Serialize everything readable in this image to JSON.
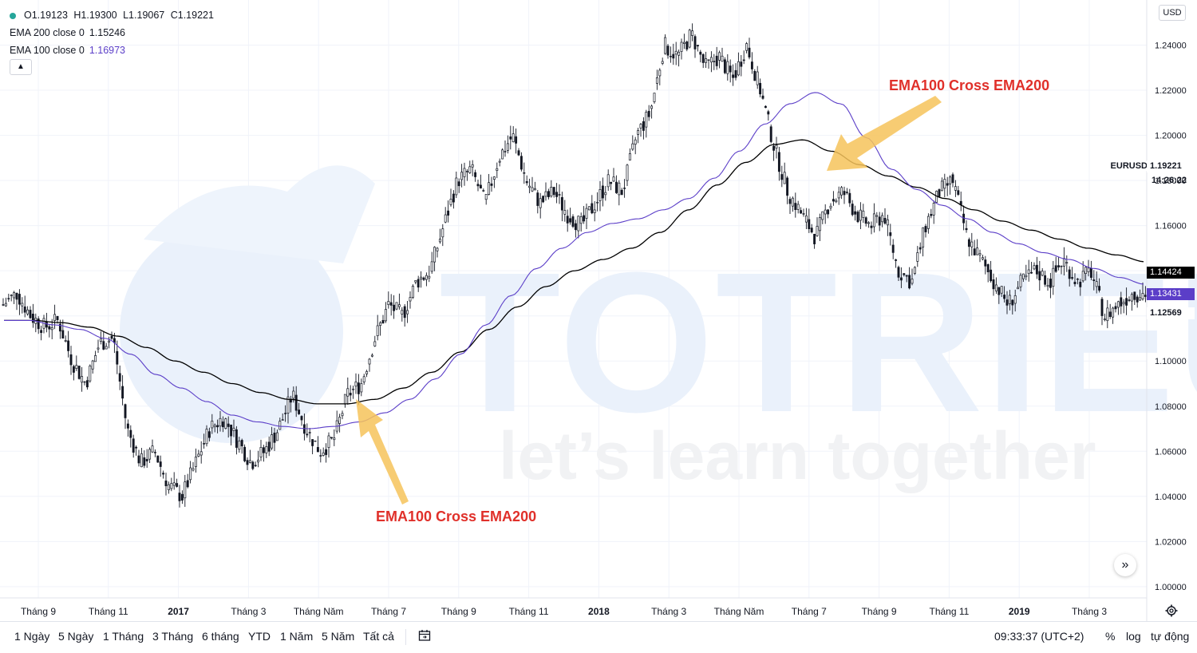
{
  "legend": {
    "ohlc": {
      "open": "O1.19123",
      "high": "H1.19300",
      "low": "L1.19067",
      "close": "C1.19221"
    },
    "ema200": {
      "label": "EMA 200 close 0",
      "value": "1.15246"
    },
    "ema100": {
      "label": "EMA 100 close 0",
      "value": "1.16973"
    }
  },
  "currency": "USD",
  "symbol": "EURUSD",
  "current_price": "1.19221",
  "countdown": "14:26:22",
  "ema200_tag": "1.14424",
  "ema100_tag": "1.13431",
  "other_tag": "1.12569",
  "watermark": {
    "brand": "TOTRIEU",
    "tagline": "let’s learn together"
  },
  "annotations": [
    {
      "text": "EMA100 Cross EMA200"
    },
    {
      "text": "EMA100 Cross EMA200"
    }
  ],
  "toolbar": {
    "timeframes": [
      "1 Ngày",
      "5 Ngày",
      "1 Tháng",
      "3 Tháng",
      "6 tháng",
      "YTD",
      "1 Năm",
      "5 Năm",
      "Tất cả"
    ],
    "clock": "09:33:37 (UTC+2)",
    "percent": "%",
    "log": "log",
    "auto": "tự động"
  },
  "colors": {
    "ema100": "#5b3ec8",
    "ema200": "#000000",
    "candle": "#131722",
    "annotation": "#e0302a",
    "arrow": "#f6c35a",
    "watermark": "#eaf1fb"
  },
  "chart_data": {
    "type": "line",
    "symbol": "EURUSD",
    "ylim": [
      0.995,
      1.26
    ],
    "y_ticks": [
      "1.00000",
      "1.02000",
      "1.04000",
      "1.06000",
      "1.08000",
      "1.10000",
      "1.12000",
      "1.14000",
      "1.16000",
      "1.18000",
      "1.20000",
      "1.22000",
      "1.24000"
    ],
    "y_tick_values": [
      1.0,
      1.02,
      1.04,
      1.06,
      1.08,
      1.1,
      1.12,
      1.14,
      1.16,
      1.18,
      1.2,
      1.22,
      1.24
    ],
    "x_ticks": [
      {
        "label": "Tháng 9",
        "bold": false
      },
      {
        "label": "Tháng 11",
        "bold": false
      },
      {
        "label": "2017",
        "bold": true
      },
      {
        "label": "Tháng 3",
        "bold": false
      },
      {
        "label": "Tháng Năm",
        "bold": false
      },
      {
        "label": "Tháng 7",
        "bold": false
      },
      {
        "label": "Tháng 9",
        "bold": false
      },
      {
        "label": "Tháng 11",
        "bold": false
      },
      {
        "label": "2018",
        "bold": true
      },
      {
        "label": "Tháng 3",
        "bold": false
      },
      {
        "label": "Tháng Năm",
        "bold": false
      },
      {
        "label": "Tháng 7",
        "bold": false
      },
      {
        "label": "Tháng 9",
        "bold": false
      },
      {
        "label": "Tháng 11",
        "bold": false
      },
      {
        "label": "2019",
        "bold": true
      },
      {
        "label": "Tháng 3",
        "bold": false
      }
    ],
    "price_series": [
      1.125,
      1.13,
      1.12,
      1.115,
      1.118,
      1.1,
      1.09,
      1.108,
      1.11,
      1.07,
      1.055,
      1.06,
      1.045,
      1.04,
      1.055,
      1.07,
      1.075,
      1.065,
      1.055,
      1.06,
      1.07,
      1.085,
      1.07,
      1.06,
      1.065,
      1.085,
      1.09,
      1.11,
      1.125,
      1.12,
      1.135,
      1.14,
      1.16,
      1.18,
      1.185,
      1.17,
      1.19,
      1.2,
      1.18,
      1.17,
      1.175,
      1.165,
      1.16,
      1.17,
      1.18,
      1.175,
      1.2,
      1.21,
      1.24,
      1.235,
      1.245,
      1.23,
      1.235,
      1.225,
      1.24,
      1.22,
      1.195,
      1.175,
      1.165,
      1.155,
      1.17,
      1.175,
      1.165,
      1.16,
      1.165,
      1.14,
      1.135,
      1.16,
      1.175,
      1.18,
      1.155,
      1.145,
      1.135,
      1.125,
      1.135,
      1.14,
      1.135,
      1.145,
      1.135,
      1.14,
      1.12,
      1.125,
      1.13,
      1.13
    ],
    "series": [
      {
        "name": "EMA 100 close 0",
        "values": [
          1.118,
          1.118,
          1.116,
          1.114,
          1.11,
          1.103,
          1.094,
          1.088,
          1.082,
          1.076,
          1.073,
          1.071,
          1.07,
          1.071,
          1.073,
          1.077,
          1.083,
          1.092,
          1.103,
          1.116,
          1.129,
          1.141,
          1.15,
          1.157,
          1.161,
          1.163,
          1.167,
          1.172,
          1.181,
          1.193,
          1.205,
          1.214,
          1.219,
          1.214,
          1.199,
          1.185,
          1.176,
          1.169,
          1.163,
          1.157,
          1.152,
          1.148,
          1.145,
          1.141,
          1.137,
          1.134
        ]
      },
      {
        "name": "EMA 200 close 0",
        "values": [
          1.118,
          1.118,
          1.117,
          1.115,
          1.111,
          1.106,
          1.1,
          1.095,
          1.09,
          1.086,
          1.083,
          1.081,
          1.081,
          1.083,
          1.088,
          1.095,
          1.104,
          1.114,
          1.124,
          1.133,
          1.14,
          1.145,
          1.15,
          1.157,
          1.167,
          1.178,
          1.188,
          1.196,
          1.198,
          1.193,
          1.187,
          1.182,
          1.177,
          1.172,
          1.167,
          1.162,
          1.158,
          1.154,
          1.15,
          1.147,
          1.144
        ]
      }
    ]
  }
}
